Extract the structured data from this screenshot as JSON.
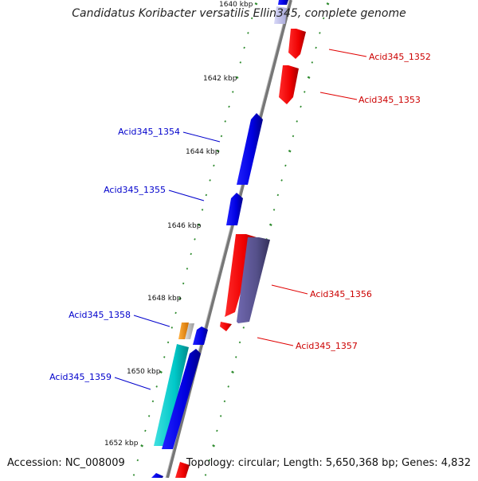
{
  "title": "Candidatus Koribacter versatilis Ellin345, complete genome",
  "footer": {
    "accession": "Accession: NC_008009",
    "stats": "Topology: circular; Length: 5,650,368 bp; Genes: 4,832"
  },
  "colors": {
    "backbone": "#8a8a8a",
    "tick": "#2e8b2e",
    "forward_gene": "#ff0000",
    "reverse_gene": "#0000ee",
    "label_forward": "#cc0000",
    "label_reverse": "#0000cc",
    "rna_cyan": "#00cccc",
    "purple": "#55508a",
    "orange": "#ff9900"
  },
  "kbp_labels": [
    "1640 kbp",
    "1642 kbp",
    "1644 kbp",
    "1646 kbp",
    "1648 kbp",
    "1650 kbp",
    "1652 kbp"
  ],
  "gene_labels": [
    {
      "text": "Acid345_1352",
      "strand": "forward"
    },
    {
      "text": "Acid345_1353",
      "strand": "forward"
    },
    {
      "text": "Acid345_1354",
      "strand": "reverse"
    },
    {
      "text": "Acid345_1355",
      "strand": "reverse"
    },
    {
      "text": "Acid345_1356",
      "strand": "forward"
    },
    {
      "text": "Acid345_1357",
      "strand": "forward"
    },
    {
      "text": "Acid345_1358",
      "strand": "reverse"
    },
    {
      "text": "Acid345_1359",
      "strand": "reverse"
    }
  ]
}
